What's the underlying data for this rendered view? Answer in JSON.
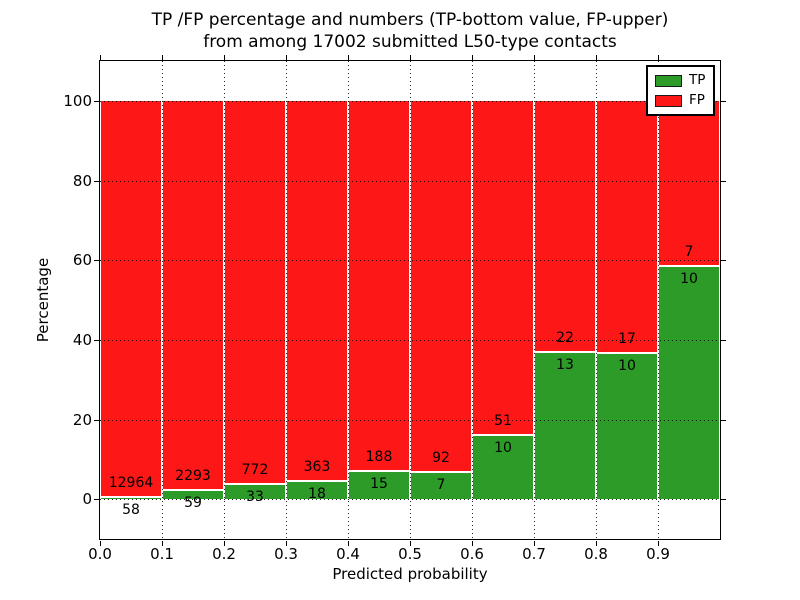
{
  "figure": {
    "title_line1": "TP /FP percentage and numbers (TP-bottom value, FP-upper)",
    "title_line2": "from among 17002 submitted L50-type contacts"
  },
  "chart_data": {
    "type": "bar",
    "stacked": true,
    "orientation": "vertical",
    "title": "TP /FP percentage and numbers (TP-bottom value, FP-upper) from among 17002 submitted L50-type contacts",
    "xlabel": "Predicted probability",
    "ylabel": "Percentage",
    "total_submitted_contacts": 17002,
    "contact_type": "L50",
    "xlim": [
      0.0,
      1.0
    ],
    "ylim": [
      -10,
      110
    ],
    "bar_width": 0.1,
    "grid": "dotted",
    "x_tick_labels": [
      "0.0",
      "0.1",
      "0.2",
      "0.3",
      "0.4",
      "0.5",
      "0.6",
      "0.7",
      "0.8",
      "0.9"
    ],
    "y_ticks": [
      0,
      20,
      40,
      60,
      80,
      100
    ],
    "y_tick_labels": [
      "0",
      "20",
      "40",
      "60",
      "80",
      "100"
    ],
    "colors": {
      "tp": "#2d9b27",
      "fp": "#fe1717",
      "bar_edge": "#ffffff"
    },
    "legend": {
      "position": "upper right",
      "entries": [
        {
          "label": "TP",
          "color": "#2d9b27"
        },
        {
          "label": "FP",
          "color": "#fe1717"
        }
      ]
    },
    "series_note": "Each bin stacks TP percentage (green, bottom) and FP percentage (red, top) summing to 100%; printed numbers are raw counts (TP below boundary, FP above boundary)",
    "bins": [
      {
        "x0": 0.0,
        "x1": 0.1,
        "tp": 58,
        "fp": 12964
      },
      {
        "x0": 0.1,
        "x1": 0.2,
        "tp": 59,
        "fp": 2293
      },
      {
        "x0": 0.2,
        "x1": 0.3,
        "tp": 33,
        "fp": 772
      },
      {
        "x0": 0.3,
        "x1": 0.4,
        "tp": 18,
        "fp": 363
      },
      {
        "x0": 0.4,
        "x1": 0.5,
        "tp": 15,
        "fp": 188
      },
      {
        "x0": 0.5,
        "x1": 0.6,
        "tp": 7,
        "fp": 92
      },
      {
        "x0": 0.6,
        "x1": 0.7,
        "tp": 10,
        "fp": 51
      },
      {
        "x0": 0.7,
        "x1": 0.8,
        "tp": 13,
        "fp": 22
      },
      {
        "x0": 0.8,
        "x1": 0.9,
        "tp": 10,
        "fp": 17
      },
      {
        "x0": 0.9,
        "x1": 1.0,
        "tp": 10,
        "fp": 7
      }
    ]
  }
}
